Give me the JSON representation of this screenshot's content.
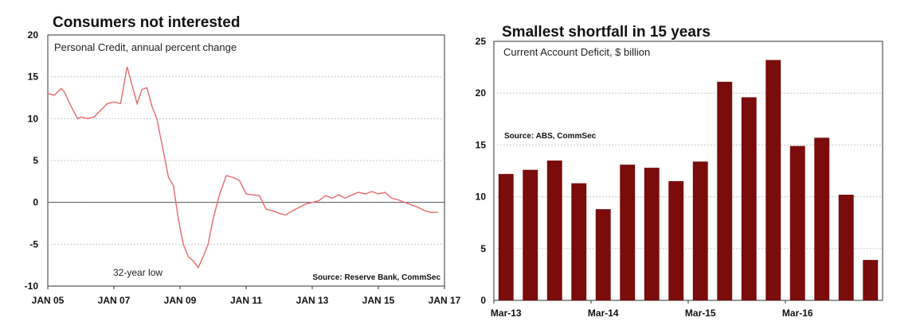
{
  "chart_data": [
    {
      "type": "line",
      "title": "Consumers not interested",
      "subtitle": "Personal Credit, annual percent change",
      "source": "Source: Reserve Bank, CommSec",
      "annotation": "32-year low",
      "ylim": [
        -10,
        20
      ],
      "yticks": [
        "20",
        "15",
        "10",
        "5",
        "0",
        "-5",
        "-10"
      ],
      "ytick_values": [
        20,
        15,
        10,
        5,
        0,
        -5,
        -10
      ],
      "xlim": [
        2005.0,
        2017.0
      ],
      "xticks": [
        "JAN 05",
        "JAN 07",
        "JAN 09",
        "JAN 11",
        "JAN 13",
        "JAN 15",
        "JAN 17"
      ],
      "xtick_values": [
        2005,
        2007,
        2009,
        2011,
        2013,
        2015,
        2017
      ],
      "grid": true,
      "zero_line": true,
      "color": "#e86a6a",
      "series": [
        {
          "x": [
            2005.0,
            2005.2,
            2005.4,
            2005.5,
            2005.7,
            2005.9,
            2006.0,
            2006.2,
            2006.4,
            2006.6,
            2006.8,
            2007.0,
            2007.2,
            2007.4,
            2007.55,
            2007.7,
            2007.85,
            2008.0,
            2008.15,
            2008.3,
            2008.5,
            2008.65,
            2008.8,
            2008.95,
            2009.1,
            2009.25,
            2009.4,
            2009.55,
            2009.7,
            2009.85,
            2010.0,
            2010.2,
            2010.4,
            2010.6,
            2010.8,
            2011.0,
            2011.2,
            2011.4,
            2011.6,
            2011.8,
            2012.0,
            2012.2,
            2012.4,
            2012.6,
            2012.8,
            2013.0,
            2013.2,
            2013.4,
            2013.6,
            2013.8,
            2014.0,
            2014.2,
            2014.4,
            2014.6,
            2014.8,
            2015.0,
            2015.2,
            2015.4,
            2015.6,
            2015.8,
            2016.0,
            2016.2,
            2016.4,
            2016.6,
            2016.8
          ],
          "y": [
            13.0,
            12.8,
            13.6,
            13.2,
            11.5,
            10.0,
            10.2,
            10.0,
            10.2,
            11.0,
            11.8,
            12.0,
            11.8,
            16.2,
            14.0,
            11.8,
            13.5,
            13.7,
            11.5,
            10.0,
            6.0,
            3.0,
            2.0,
            -2.0,
            -5.0,
            -6.5,
            -7.0,
            -7.8,
            -6.5,
            -5.0,
            -2.0,
            1.0,
            3.2,
            3.0,
            2.6,
            1.0,
            0.9,
            0.8,
            -0.8,
            -1.0,
            -1.3,
            -1.5,
            -1.0,
            -0.6,
            -0.2,
            0.0,
            0.2,
            0.8,
            0.5,
            0.9,
            0.5,
            0.9,
            1.2,
            1.0,
            1.3,
            1.0,
            1.2,
            0.5,
            0.3,
            0.0,
            -0.3,
            -0.6,
            -1.0,
            -1.2,
            -1.2
          ]
        }
      ]
    },
    {
      "type": "bar",
      "title": "Smallest shortfall in 15 years",
      "subtitle": "Current Account Deficit, $ billion",
      "source": "Source: ABS, CommSec",
      "ylim": [
        0,
        25
      ],
      "yticks": [
        "25",
        "20",
        "15",
        "10",
        "5",
        "0"
      ],
      "ytick_values": [
        25,
        20,
        15,
        10,
        5,
        0
      ],
      "xticks": [
        "Mar-13",
        "Mar-14",
        "Mar-15",
        "Mar-16"
      ],
      "xtick_positions": [
        0,
        4,
        8,
        12
      ],
      "grid": true,
      "color": "#7a0c0c",
      "categories": [
        "Mar-13",
        "Jun-13",
        "Sep-13",
        "Dec-13",
        "Mar-14",
        "Jun-14",
        "Sep-14",
        "Dec-14",
        "Mar-15",
        "Jun-15",
        "Sep-15",
        "Dec-15",
        "Mar-16",
        "Jun-16",
        "Sep-16",
        "Dec-16"
      ],
      "values": [
        12.2,
        12.6,
        13.5,
        11.3,
        8.8,
        13.1,
        12.8,
        11.5,
        13.4,
        21.1,
        19.6,
        23.2,
        14.9,
        15.7,
        10.2,
        3.9
      ]
    }
  ]
}
